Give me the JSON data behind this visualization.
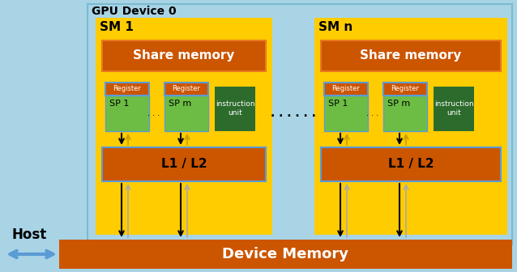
{
  "colors": {
    "light_blue_bg": "#A8D4E6",
    "yellow_sm": "#FFCC00",
    "orange_dark": "#CC5500",
    "orange_border": "#E87820",
    "green_sp": "#6DBD45",
    "dark_green_instr": "#2D6B2D",
    "blue_border": "#5B9BD5",
    "white": "#FFFFFF",
    "black": "#000000",
    "gray_arrow": "#AAAAAA",
    "blue_arrow": "#5B9BD5"
  },
  "texts": {
    "gpu_device": "GPU Device 0",
    "sm1": "SM 1",
    "smn": "SM n",
    "share_memory": "Share memory",
    "register": "Register",
    "sp1": "SP 1",
    "spm": "SP m",
    "instr": "instruction\nunit",
    "l1l2": "L1 / L2",
    "device_memory": "Device Memory",
    "host": "Host",
    "dots_sm": ". . .",
    "dots_between": ". . . . . ."
  }
}
